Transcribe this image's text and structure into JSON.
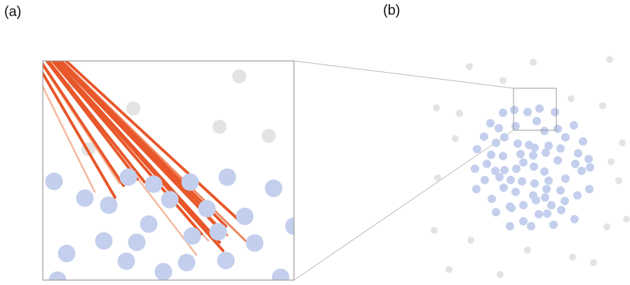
{
  "panels": {
    "a": {
      "label": "(a)"
    },
    "b": {
      "label": "(b)"
    }
  },
  "colors": {
    "particle_gray": "#e3e3e3",
    "particle_blue": "#c3cfec",
    "bond_strong": "#e8572a",
    "bond_weak": "#f3b89c",
    "frame": "#9a9a9a",
    "connector": "#b8b8b8"
  }
}
